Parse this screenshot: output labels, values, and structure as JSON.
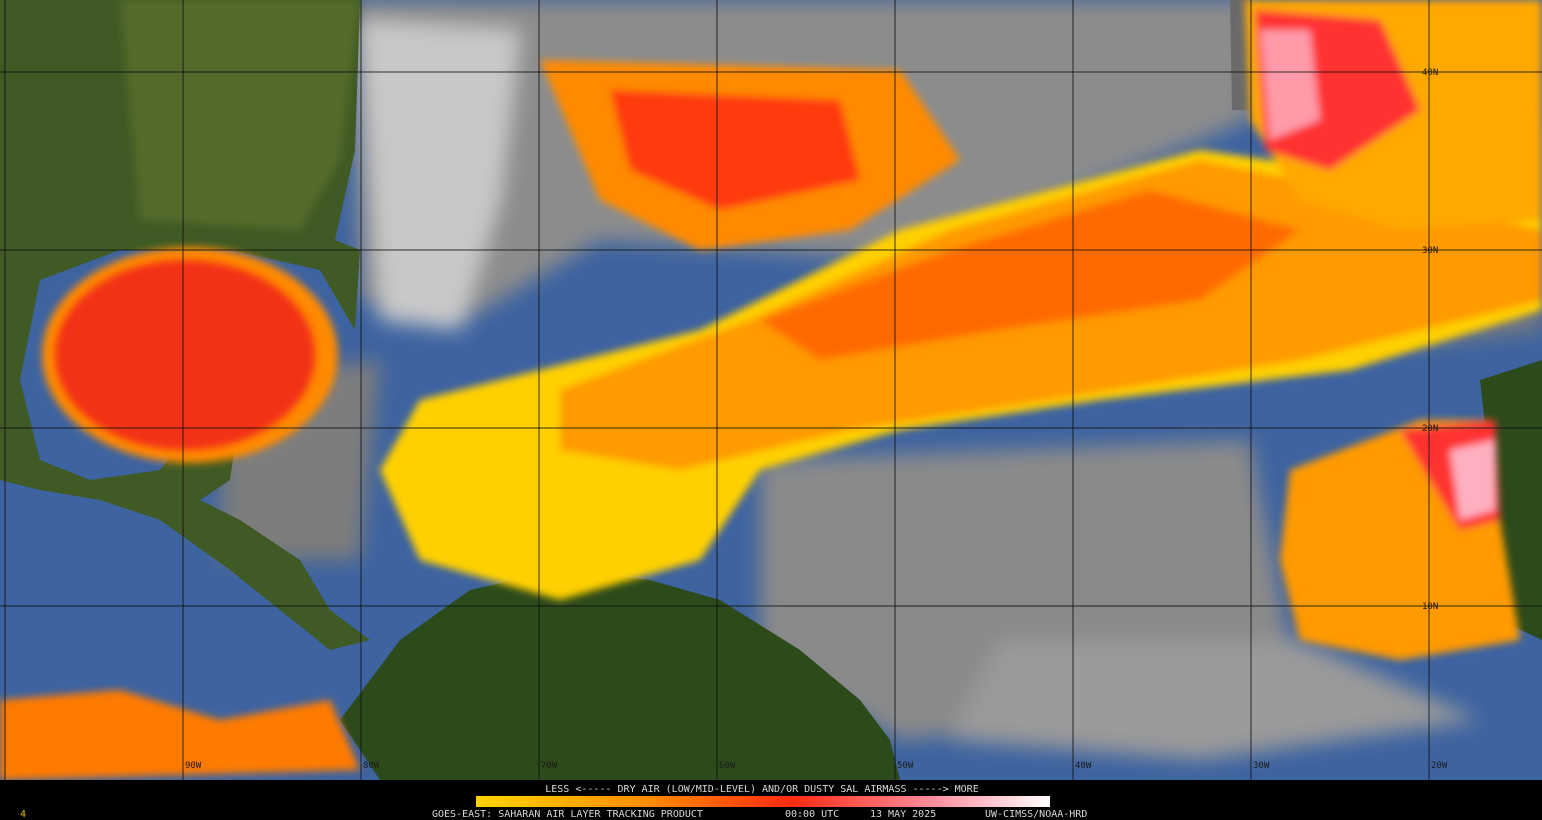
{
  "grid": {
    "longitudes": [
      "90W",
      "80W",
      "70W",
      "60W",
      "50W",
      "40W",
      "30W",
      "20W"
    ],
    "latitudes": [
      "40N",
      "30N",
      "20N",
      "10N"
    ]
  },
  "legend": {
    "caption": "LESS <----- DRY AIR (LOW/MID-LEVEL) AND/OR DUSTY SAL AIRMASS -----> MORE"
  },
  "footer": {
    "product": "GOES-EAST: SAHARAN AIR LAYER TRACKING PRODUCT",
    "time": "00:00 UTC",
    "date": "13 MAY 2025",
    "credit": "UW-CIMSS/NOAA-HRD"
  },
  "corner_label": "4"
}
